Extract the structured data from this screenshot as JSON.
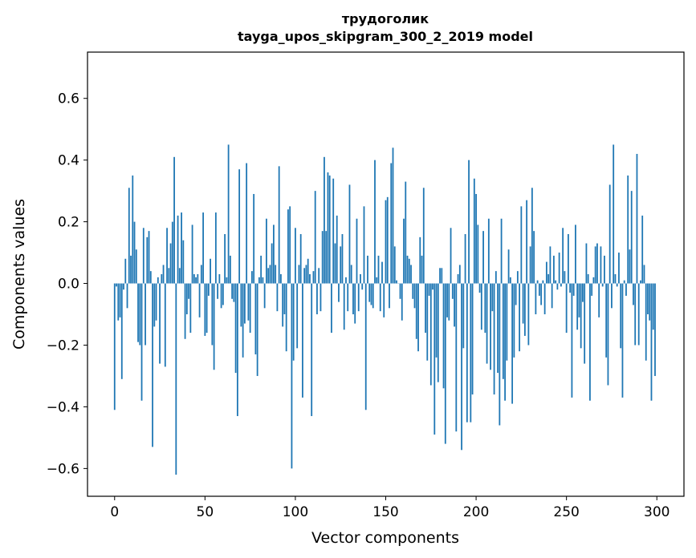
{
  "chart_data": {
    "type": "bar",
    "title": "трудоголик",
    "subtitle": "tayga_upos_skipgram_300_2_2019 model",
    "xlabel": "Vector components",
    "ylabel": "Components values",
    "xlim": [
      -15,
      315
    ],
    "ylim": [
      -0.69,
      0.75
    ],
    "xticks": [
      0,
      50,
      100,
      150,
      200,
      250,
      300
    ],
    "yticks": [
      -0.6,
      -0.4,
      -0.2,
      0.0,
      0.2,
      0.4,
      0.6
    ],
    "ytick_labels": [
      "−0.6",
      "−0.4",
      "−0.2",
      "0.0",
      "0.2",
      "0.4",
      "0.6"
    ],
    "grid": false,
    "bar_color": "#1f77b4",
    "values": [
      -0.41,
      -0.01,
      -0.12,
      -0.11,
      -0.31,
      -0.02,
      0.08,
      -0.08,
      0.31,
      0.09,
      0.35,
      0.2,
      0.11,
      -0.19,
      -0.2,
      -0.38,
      0.18,
      -0.2,
      0.15,
      0.17,
      0.04,
      -0.53,
      -0.14,
      -0.12,
      0.02,
      -0.26,
      0.03,
      0.06,
      -0.27,
      0.18,
      0.05,
      0.13,
      0.2,
      0.41,
      -0.62,
      0.22,
      0.05,
      0.23,
      0.14,
      -0.18,
      -0.1,
      -0.05,
      -0.16,
      0.19,
      0.03,
      0.02,
      0.03,
      -0.11,
      0.06,
      0.23,
      -0.17,
      -0.16,
      -0.04,
      0.08,
      -0.2,
      -0.28,
      0.23,
      -0.05,
      0.03,
      -0.08,
      -0.07,
      0.16,
      0.02,
      0.45,
      0.09,
      -0.05,
      -0.06,
      -0.29,
      -0.43,
      0.37,
      -0.14,
      -0.24,
      -0.13,
      0.39,
      -0.12,
      -0.16,
      0.04,
      0.29,
      -0.23,
      -0.3,
      0.02,
      0.09,
      0.02,
      -0.08,
      0.21,
      0.05,
      0.06,
      0.13,
      0.19,
      0.06,
      -0.09,
      0.38,
      0.03,
      -0.14,
      -0.1,
      -0.22,
      0.24,
      0.25,
      -0.6,
      -0.25,
      0.18,
      -0.21,
      0.06,
      0.16,
      -0.37,
      0.05,
      0.06,
      0.08,
      0.03,
      -0.43,
      0.04,
      0.3,
      -0.1,
      0.05,
      -0.09,
      0.17,
      0.41,
      0.17,
      0.36,
      0.35,
      -0.16,
      0.34,
      0.13,
      0.22,
      -0.06,
      0.12,
      0.16,
      -0.15,
      0.02,
      -0.09,
      0.32,
      0.06,
      -0.1,
      -0.13,
      0.21,
      -0.09,
      0.03,
      -0.02,
      0.25,
      -0.41,
      0.09,
      -0.06,
      -0.07,
      -0.08,
      0.4,
      0.02,
      0.09,
      -0.09,
      0.07,
      -0.11,
      0.27,
      0.28,
      -0.08,
      0.39,
      0.44,
      0.12,
      0.01,
      0.0,
      -0.05,
      -0.12,
      0.21,
      0.33,
      0.09,
      0.08,
      0.06,
      -0.05,
      -0.08,
      -0.18,
      -0.22,
      0.15,
      0.09,
      0.31,
      -0.16,
      -0.25,
      -0.04,
      -0.33,
      -0.02,
      -0.49,
      -0.24,
      -0.32,
      0.05,
      0.05,
      -0.34,
      -0.52,
      -0.11,
      -0.12,
      0.18,
      -0.05,
      -0.14,
      -0.48,
      0.03,
      0.06,
      -0.54,
      -0.21,
      0.16,
      -0.45,
      0.4,
      -0.45,
      -0.36,
      0.34,
      0.29,
      0.19,
      -0.03,
      -0.15,
      0.17,
      -0.16,
      -0.26,
      0.21,
      -0.28,
      -0.09,
      -0.36,
      0.04,
      -0.29,
      -0.46,
      0.21,
      -0.31,
      -0.38,
      -0.25,
      0.11,
      0.02,
      -0.39,
      -0.24,
      -0.07,
      0.04,
      -0.22,
      0.25,
      -0.13,
      -0.17,
      0.27,
      -0.2,
      0.12,
      0.31,
      0.17,
      -0.1,
      0.01,
      -0.04,
      -0.07,
      0.01,
      -0.1,
      0.07,
      0.03,
      0.12,
      -0.08,
      0.09,
      0.01,
      -0.02,
      0.1,
      -0.01,
      0.18,
      0.04,
      -0.16,
      0.16,
      -0.03,
      -0.37,
      -0.04,
      0.19,
      -0.15,
      -0.11,
      -0.21,
      -0.06,
      -0.26,
      0.13,
      0.03,
      -0.38,
      -0.04,
      0.02,
      0.12,
      0.13,
      -0.11,
      0.12,
      -0.01,
      0.09,
      -0.24,
      -0.33,
      0.32,
      -0.08,
      0.45,
      0.03,
      -0.01,
      0.1,
      -0.21,
      -0.37,
      0.01,
      -0.04,
      0.35,
      0.11,
      0.3,
      -0.07,
      -0.2,
      0.42,
      -0.2,
      0.01,
      0.22,
      0.06,
      -0.25,
      -0.1,
      -0.12,
      -0.38,
      -0.15,
      -0.3
    ]
  }
}
